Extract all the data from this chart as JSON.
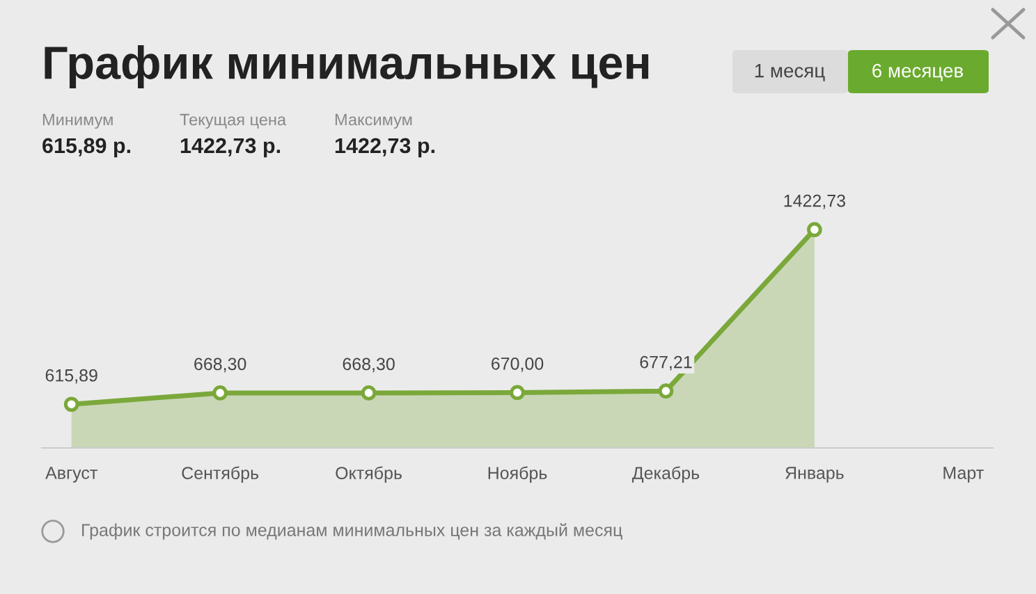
{
  "chart_data": {
    "type": "area",
    "title": "График минимальных цен",
    "categories": [
      "Август",
      "Сентябрь",
      "Октябрь",
      "Ноябрь",
      "Декабрь",
      "Январь",
      "Март"
    ],
    "series": [
      {
        "color": "#7aa83a",
        "values": [
          615.89,
          668.3,
          668.3,
          670.0,
          677.21,
          1422.73,
          null
        ],
        "value_labels": [
          "615,89",
          "668,30",
          "668,30",
          "670,00",
          "677,21",
          "1422,73",
          null
        ]
      }
    ],
    "marker": "circle",
    "line_style": "solid",
    "grid": false,
    "legend": false,
    "annotations": [
      "1 месяц",
      "6 месяцев",
      "Минимум",
      "615,89 р.",
      "Текущая цена",
      "1422,73 р.",
      "Максимум",
      "1422,73 р.",
      "График строится по медианам минимальных цен за каждый месяц"
    ]
  }
}
